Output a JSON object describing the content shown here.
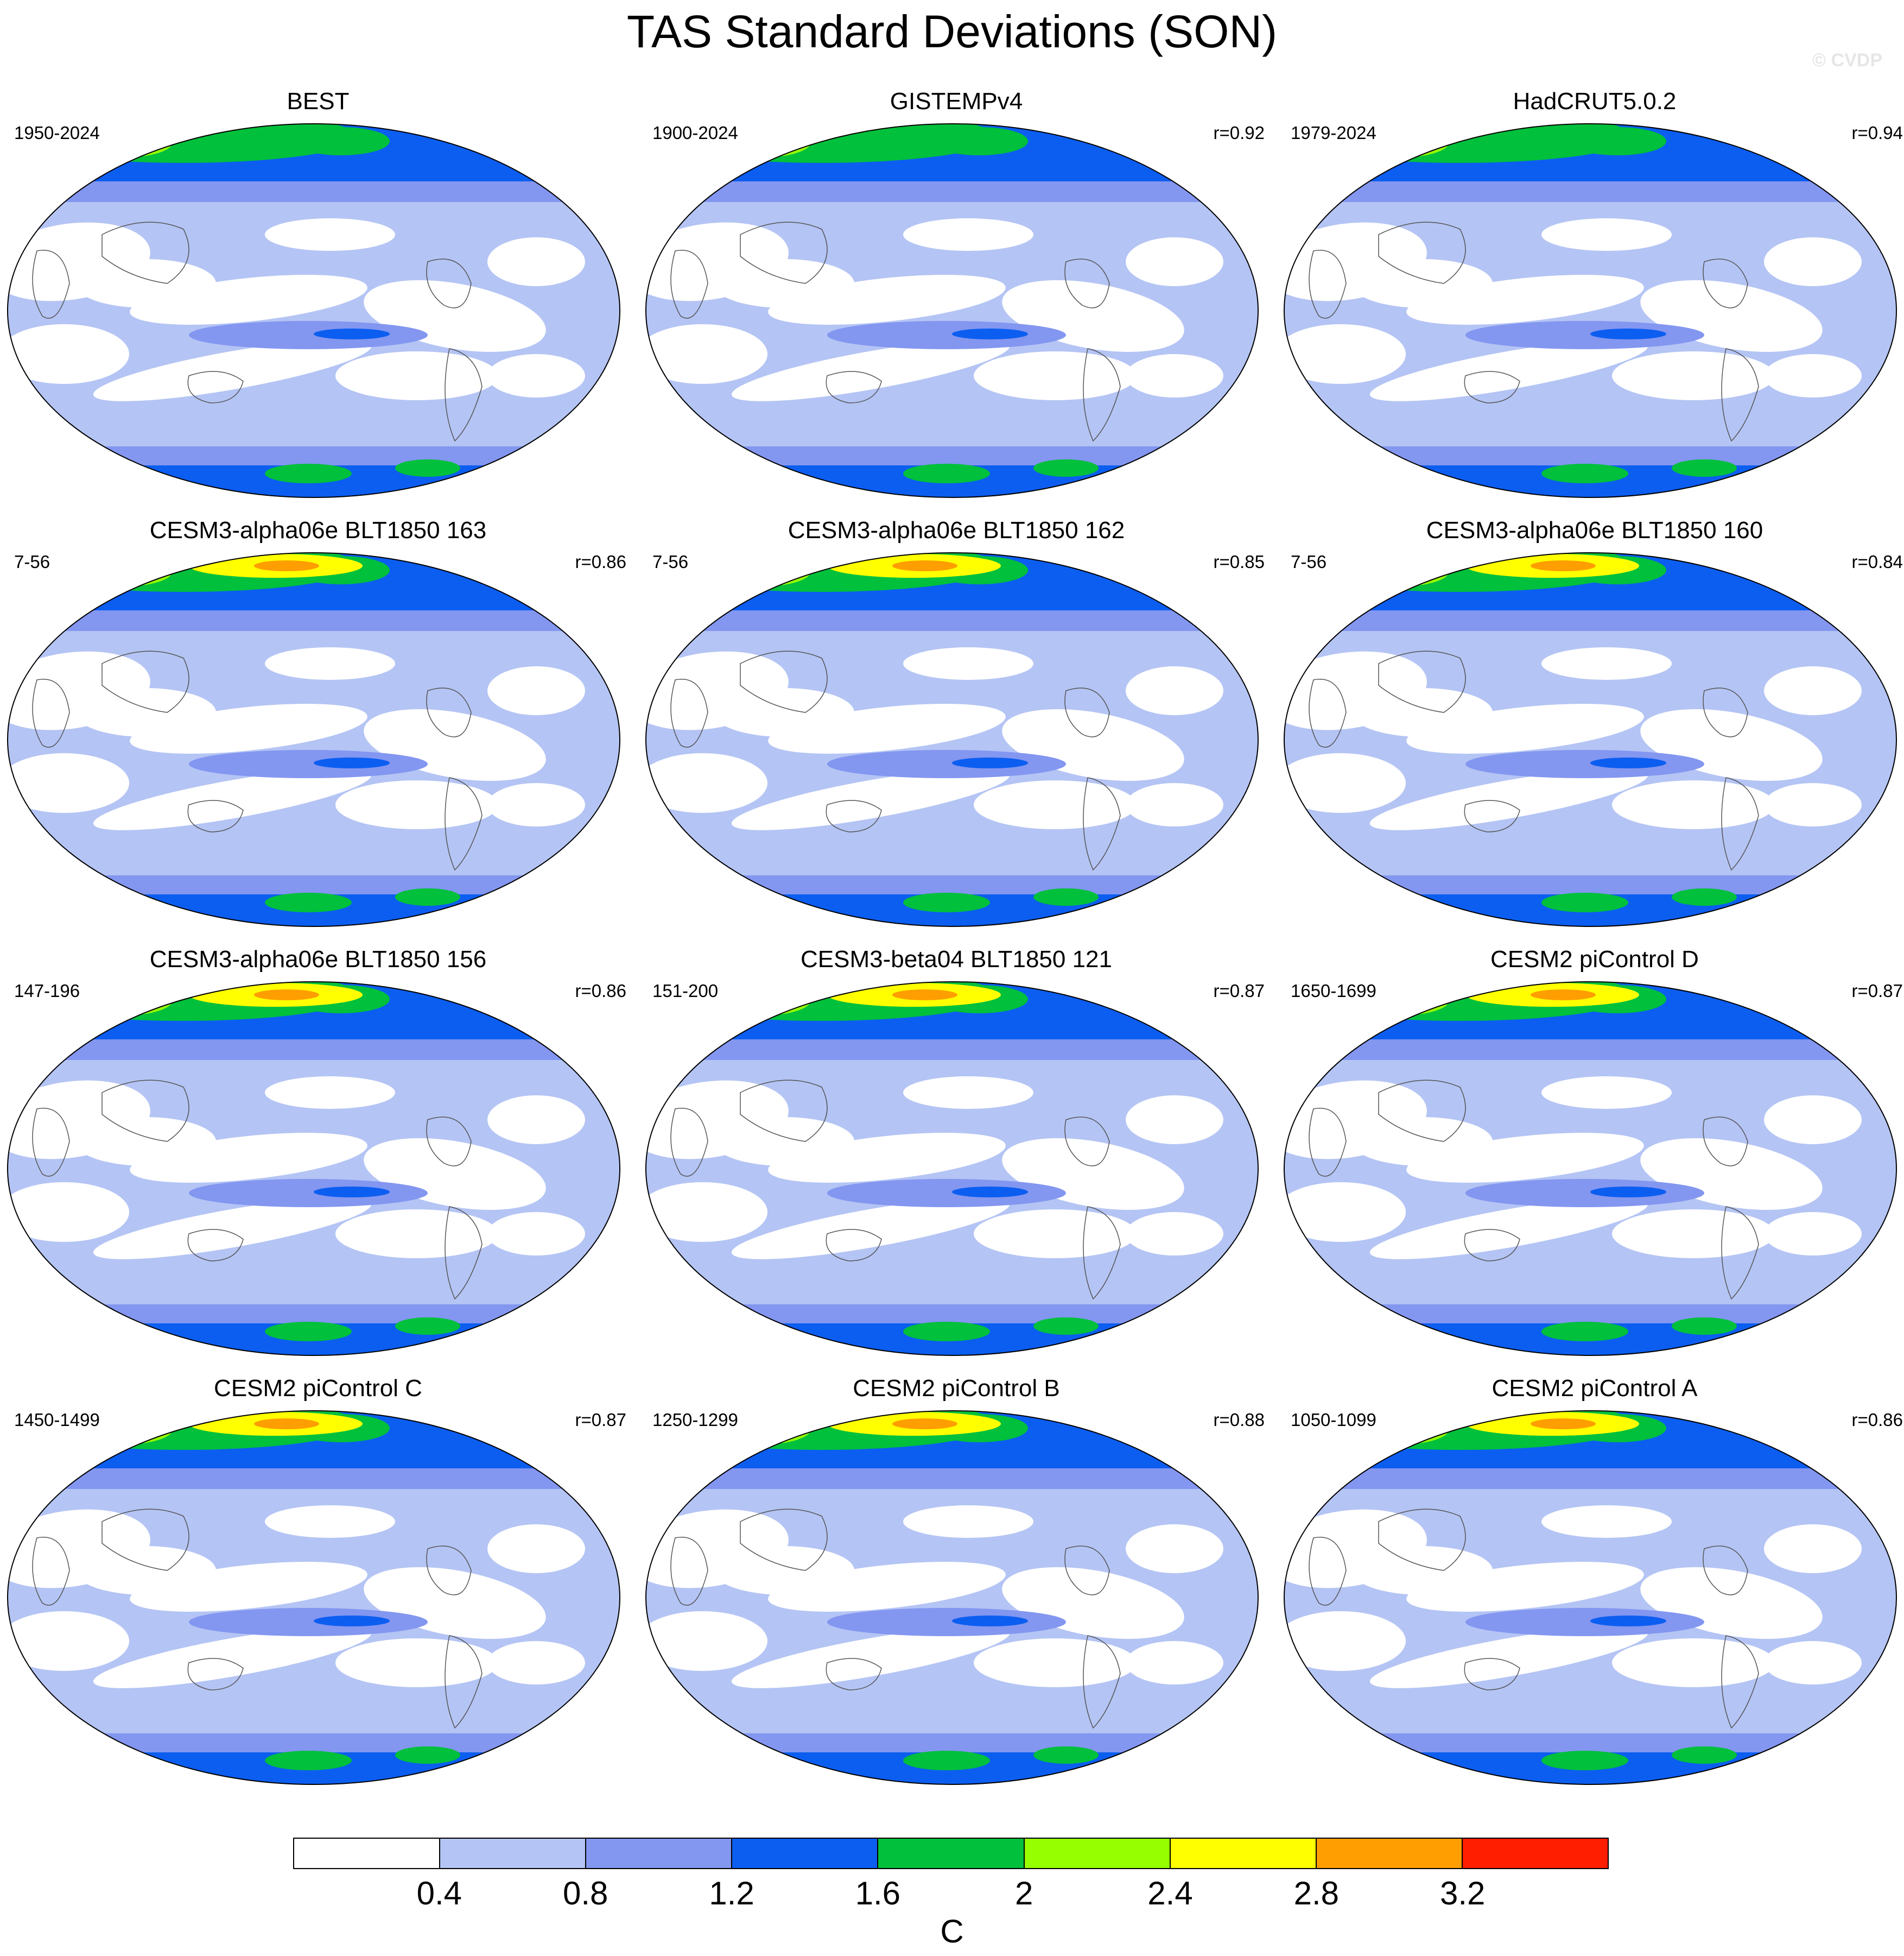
{
  "title": "TAS Standard Deviations (SON)",
  "credit": "© CVDP",
  "panels": [
    {
      "title": "BEST",
      "period": "1950-2024",
      "r": ""
    },
    {
      "title": "GISTEMPv4",
      "period": "1900-2024",
      "r": "r=0.92"
    },
    {
      "title": "HadCRUT5.0.2",
      "period": "1979-2024",
      "r": "r=0.94"
    },
    {
      "title": "CESM3-alpha06e BLT1850 163",
      "period": "7-56",
      "r": "r=0.86"
    },
    {
      "title": "CESM3-alpha06e BLT1850 162",
      "period": "7-56",
      "r": "r=0.85"
    },
    {
      "title": "CESM3-alpha06e BLT1850 160",
      "period": "7-56",
      "r": "r=0.84"
    },
    {
      "title": "CESM3-alpha06e BLT1850 156",
      "period": "147-196",
      "r": "r=0.86"
    },
    {
      "title": "CESM3-beta04 BLT1850 121",
      "period": "151-200",
      "r": "r=0.87"
    },
    {
      "title": "CESM2 piControl D",
      "period": "1650-1699",
      "r": "r=0.87"
    },
    {
      "title": "CESM2 piControl C",
      "period": "1450-1499",
      "r": "r=0.87"
    },
    {
      "title": "CESM2 piControl B",
      "period": "1250-1299",
      "r": "r=0.88"
    },
    {
      "title": "CESM2 piControl A",
      "period": "1050-1099",
      "r": "r=0.86"
    }
  ],
  "colorbar": {
    "colors": [
      "#ffffff",
      "#b4c4f4",
      "#8396f0",
      "#0c5ef0",
      "#00c03c",
      "#96ff00",
      "#ffff00",
      "#ff9e00",
      "#ff1e00"
    ],
    "ticks": [
      "0.4",
      "0.8",
      "1.2",
      "1.6",
      "2",
      "2.4",
      "2.8",
      "3.2"
    ],
    "units": "C"
  }
}
